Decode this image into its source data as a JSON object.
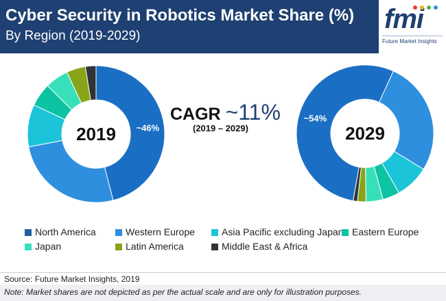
{
  "header": {
    "title": "Cyber Security in Robotics Market Share (%)",
    "subtitle": "By Region (2019-2029)"
  },
  "logo": {
    "text": "fmi",
    "caption": "Future Market Insights"
  },
  "cagr": {
    "prefix": "CAGR ",
    "value": "~11%",
    "range": "(2019 – 2029)"
  },
  "chart_data": [
    {
      "type": "pie",
      "donut": true,
      "center_label": "2019",
      "categories": [
        "North America",
        "Western Europe",
        "Asia Pacific excluding Japan",
        "Eastern Europe",
        "Japan",
        "Latin America",
        "Middle East & Africa"
      ],
      "values": [
        46,
        26,
        10,
        5.5,
        5.5,
        4.5,
        2.5
      ],
      "colors": [
        "#1a6fc4",
        "#2e8fde",
        "#1cc4d9",
        "#0cc3a4",
        "#38e0b9",
        "#88a41a",
        "#2f3537"
      ],
      "data_labels": [
        {
          "category": "North America",
          "text": "~46%"
        }
      ]
    },
    {
      "type": "pie",
      "donut": true,
      "center_label": "2029",
      "categories": [
        "North America",
        "Western Europe",
        "Asia Pacific excluding Japan",
        "Eastern Europe",
        "Japan",
        "Latin America",
        "Middle East & Africa"
      ],
      "values": [
        54,
        27,
        8,
        4,
        4,
        2,
        1
      ],
      "colors": [
        "#1a6fc4",
        "#2e8fde",
        "#1cc4d9",
        "#0cc3a4",
        "#38e0b9",
        "#88a41a",
        "#2f3537"
      ],
      "data_labels": [
        {
          "category": "North America",
          "text": "~54%"
        }
      ]
    }
  ],
  "legend": {
    "items": [
      {
        "label": "North America",
        "color": "#1e5f9c"
      },
      {
        "label": "Western Europe",
        "color": "#2e8fde"
      },
      {
        "label": "Asia Pacific excluding Japan",
        "color": "#1cc4d9"
      },
      {
        "label": "Eastern Europe",
        "color": "#0cc3a4"
      },
      {
        "label": "Japan",
        "color": "#38e0b9"
      },
      {
        "label": "Latin America",
        "color": "#88a41a"
      },
      {
        "label": "Middle East & Africa",
        "color": "#2f3537"
      }
    ]
  },
  "footer": {
    "source": "Source: Future Market Insights, 2019",
    "note": "Note: Market shares are not depicted as per the actual scale and are only for illustration purposes."
  }
}
